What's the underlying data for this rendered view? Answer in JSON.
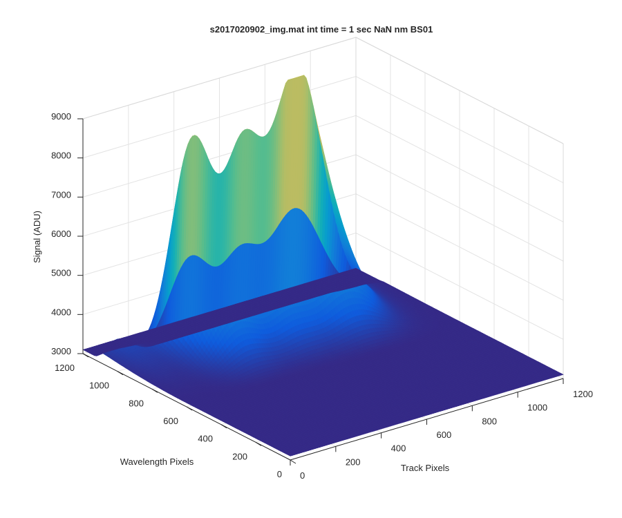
{
  "chart_data": {
    "type": "surface",
    "title": "s2017020902_img.mat int time = 1 sec  NaN nm BS01",
    "xlabel": "Track Pixels",
    "ylabel": "Wavelength Pixels",
    "zlabel": "Signal (ADU)",
    "xlim": [
      0,
      1200
    ],
    "ylim": [
      0,
      1200
    ],
    "zlim": [
      3000,
      9000
    ],
    "x_ticks": [
      "0",
      "200",
      "400",
      "600",
      "800",
      "1000",
      "1200"
    ],
    "y_ticks": [
      "0",
      "200",
      "400",
      "600",
      "800",
      "1000",
      "1200"
    ],
    "z_ticks": [
      "3000",
      "4000",
      "5000",
      "6000",
      "7000",
      "8000",
      "9000"
    ],
    "grid": true,
    "colormap": "parula",
    "colors": {
      "low": "#352a87",
      "high": "#f9fb0e"
    },
    "baseline": 3100,
    "peaks": [
      {
        "track_center": 70,
        "track_width": 55,
        "amplitude": 400,
        "edge_wavelength": 1100,
        "decay_wavelength": 500
      },
      {
        "track_center": 360,
        "track_width": 90,
        "amplitude": 5100,
        "edge_wavelength": 1040,
        "decay_wavelength": 480
      },
      {
        "track_center": 580,
        "track_width": 80,
        "amplitude": 4100,
        "edge_wavelength": 1040,
        "decay_wavelength": 480
      },
      {
        "track_center": 820,
        "track_width": 110,
        "amplitude": 6200,
        "edge_wavelength": 1040,
        "decay_wavelength": 500
      }
    ]
  }
}
